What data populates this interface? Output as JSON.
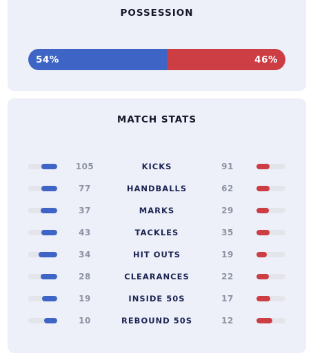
{
  "possession": {
    "title": "POSSESSION",
    "home_label": "54%",
    "away_label": "46%",
    "home_fraction": 0.54,
    "away_fraction": 0.46
  },
  "match_stats": {
    "title": "MATCH STATS",
    "rows": [
      {
        "label": "KICKS",
        "home": "105",
        "away": "91",
        "home_share": 0.54,
        "away_share": 0.46
      },
      {
        "label": "HANDBALLS",
        "home": "77",
        "away": "62",
        "home_share": 0.55,
        "away_share": 0.45
      },
      {
        "label": "MARKS",
        "home": "37",
        "away": "29",
        "home_share": 0.56,
        "away_share": 0.44
      },
      {
        "label": "TACKLES",
        "home": "43",
        "away": "35",
        "home_share": 0.55,
        "away_share": 0.45
      },
      {
        "label": "HIT OUTS",
        "home": "34",
        "away": "19",
        "home_share": 0.64,
        "away_share": 0.36
      },
      {
        "label": "CLEARANCES",
        "home": "28",
        "away": "22",
        "home_share": 0.56,
        "away_share": 0.44
      },
      {
        "label": "INSIDE 50S",
        "home": "19",
        "away": "17",
        "home_share": 0.53,
        "away_share": 0.47
      },
      {
        "label": "REBOUND 50S",
        "home": "10",
        "away": "12",
        "home_share": 0.45,
        "away_share": 0.55
      }
    ]
  },
  "colors": {
    "home": "#3e64c5",
    "away": "#cc3d44",
    "card_bg": "#edf0f8",
    "track": "#e3e5eb"
  }
}
